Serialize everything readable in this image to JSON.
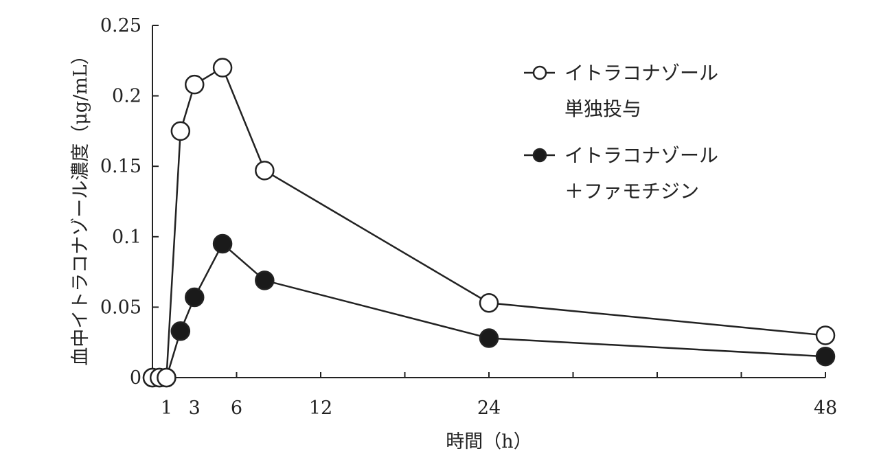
{
  "chart_data": {
    "type": "line",
    "xlabel": "時間（h）",
    "ylabel": "血中イトラコナゾール濃度（μg/mL）",
    "xlim": [
      0,
      48
    ],
    "ylim": [
      0,
      0.25
    ],
    "x_ticks": [
      1,
      3,
      6,
      12,
      24,
      48
    ],
    "x_tick_labels": [
      "1",
      "3",
      "6",
      "12",
      "24",
      "48"
    ],
    "y_ticks": [
      0,
      0.05,
      0.1,
      0.15,
      0.2,
      0.25
    ],
    "y_tick_labels": [
      "0",
      "0.05",
      "0.1",
      "0.15",
      "0.2",
      "0.25"
    ],
    "grid": false,
    "legend_position": "top-right",
    "series": [
      {
        "name": [
          "イトラコナゾール",
          "単独投与"
        ],
        "marker": "open-circle",
        "x": [
          0,
          0.5,
          1,
          2,
          3,
          5,
          8,
          24,
          48
        ],
        "y": [
          0,
          0,
          0,
          0.175,
          0.208,
          0.22,
          0.147,
          0.053,
          0.03
        ]
      },
      {
        "name": [
          "イトラコナゾール",
          "＋ファモチジン"
        ],
        "marker": "filled-circle",
        "x": [
          0,
          0.5,
          1,
          2,
          3,
          5,
          8,
          24,
          48
        ],
        "y": [
          0,
          0,
          0,
          0.033,
          0.057,
          0.095,
          0.069,
          0.028,
          0.015
        ]
      }
    ]
  },
  "colors": {
    "line": "#222222",
    "open_marker_fill": "#ffffff",
    "filled_marker_fill": "#1a1a1a"
  }
}
